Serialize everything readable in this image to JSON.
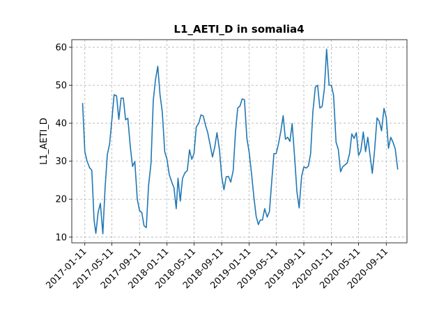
{
  "chart_data": {
    "type": "line",
    "title": "L1_AETI_D in somalia4",
    "xlabel": "",
    "ylabel": "L1_AETI_D",
    "grid": true,
    "ylim": [
      8.5,
      62
    ],
    "xlim": [
      "2016-11-14",
      "2020-12-12"
    ],
    "yticks": [
      10,
      20,
      30,
      40,
      50,
      60
    ],
    "xticks": [
      "2017-01-11",
      "2017-05-11",
      "2017-09-11",
      "2018-01-11",
      "2018-05-11",
      "2018-09-11",
      "2019-01-11",
      "2019-05-11",
      "2019-09-11",
      "2020-01-11",
      "2020-05-11",
      "2020-09-11"
    ],
    "series": [
      {
        "color": "#1f77b4",
        "x": [
          "2017-01-01",
          "2017-01-11",
          "2017-01-21",
          "2017-02-01",
          "2017-02-11",
          "2017-02-21",
          "2017-03-01",
          "2017-03-11",
          "2017-03-21",
          "2017-04-01",
          "2017-04-11",
          "2017-04-21",
          "2017-05-01",
          "2017-05-11",
          "2017-05-21",
          "2017-06-01",
          "2017-06-11",
          "2017-06-21",
          "2017-07-01",
          "2017-07-11",
          "2017-07-21",
          "2017-08-01",
          "2017-08-11",
          "2017-08-21",
          "2017-09-01",
          "2017-09-11",
          "2017-09-21",
          "2017-10-01",
          "2017-10-11",
          "2017-10-21",
          "2017-11-01",
          "2017-11-11",
          "2017-11-21",
          "2017-12-01",
          "2017-12-11",
          "2017-12-21",
          "2018-01-01",
          "2018-01-11",
          "2018-01-21",
          "2018-02-01",
          "2018-02-11",
          "2018-02-21",
          "2018-03-01",
          "2018-03-11",
          "2018-03-21",
          "2018-04-01",
          "2018-04-11",
          "2018-04-21",
          "2018-05-01",
          "2018-05-11",
          "2018-05-21",
          "2018-06-01",
          "2018-06-11",
          "2018-06-21",
          "2018-07-01",
          "2018-07-11",
          "2018-07-21",
          "2018-08-01",
          "2018-08-11",
          "2018-08-21",
          "2018-09-01",
          "2018-09-11",
          "2018-09-21",
          "2018-10-01",
          "2018-10-11",
          "2018-10-21",
          "2018-11-01",
          "2018-11-11",
          "2018-11-21",
          "2018-12-01",
          "2018-12-11",
          "2018-12-21",
          "2019-01-01",
          "2019-01-11",
          "2019-01-21",
          "2019-02-01",
          "2019-02-11",
          "2019-02-21",
          "2019-03-01",
          "2019-03-11",
          "2019-03-21",
          "2019-04-01",
          "2019-04-11",
          "2019-04-21",
          "2019-05-01",
          "2019-05-11",
          "2019-05-21",
          "2019-06-01",
          "2019-06-11",
          "2019-06-21",
          "2019-07-01",
          "2019-07-11",
          "2019-07-21",
          "2019-08-01",
          "2019-08-11",
          "2019-08-21",
          "2019-09-01",
          "2019-09-11",
          "2019-09-21",
          "2019-10-01",
          "2019-10-11",
          "2019-10-21",
          "2019-11-01",
          "2019-11-11",
          "2019-11-21",
          "2019-12-01",
          "2019-12-11",
          "2019-12-21",
          "2020-01-01",
          "2020-01-11",
          "2020-01-21",
          "2020-02-01",
          "2020-02-11",
          "2020-02-21",
          "2020-03-01",
          "2020-03-11",
          "2020-03-21",
          "2020-04-01",
          "2020-04-11",
          "2020-04-21",
          "2020-05-01",
          "2020-05-11",
          "2020-05-21",
          "2020-06-01",
          "2020-06-11",
          "2020-06-21",
          "2020-07-01",
          "2020-07-11",
          "2020-07-21",
          "2020-08-01",
          "2020-08-11",
          "2020-08-21",
          "2020-09-01",
          "2020-09-11",
          "2020-09-21",
          "2020-10-01",
          "2020-10-11",
          "2020-10-21",
          "2020-11-01"
        ],
        "values": [
          45.3,
          32.5,
          30.0,
          28.3,
          27.6,
          14.5,
          11.0,
          16.5,
          18.9,
          10.9,
          23.0,
          31.8,
          34.5,
          40.8,
          47.5,
          47.2,
          41.0,
          46.6,
          46.6,
          40.9,
          41.3,
          33.8,
          28.6,
          29.9,
          20.0,
          17.0,
          16.5,
          13.0,
          12.5,
          23.5,
          29.5,
          46.0,
          51.5,
          55.0,
          47.5,
          43.0,
          32.5,
          30.5,
          26.5,
          24.5,
          23.0,
          17.5,
          25.5,
          19.5,
          25.5,
          27.0,
          27.5,
          33.0,
          30.5,
          32.0,
          39.0,
          40.0,
          42.2,
          41.9,
          39.5,
          37.5,
          34.5,
          31.1,
          33.7,
          37.5,
          33.0,
          26.0,
          22.5,
          25.9,
          26.0,
          24.5,
          27.5,
          37.5,
          44.0,
          44.5,
          46.4,
          46.2,
          36.0,
          32.3,
          27.0,
          20.5,
          15.5,
          13.3,
          14.5,
          14.5,
          17.5,
          15.3,
          16.7,
          24.5,
          32.0,
          32.0,
          34.5,
          38.0,
          42.0,
          35.8,
          36.3,
          35.2,
          39.9,
          31.0,
          22.0,
          17.7,
          26.0,
          28.5,
          28.2,
          28.7,
          32.0,
          43.0,
          49.5,
          50.0,
          44.0,
          44.4,
          49.0,
          59.5,
          50.0,
          50.0,
          47.3,
          35.0,
          33.1,
          27.2,
          28.5,
          29.0,
          29.5,
          32.0,
          37.2,
          36.0,
          37.5,
          31.5,
          32.8,
          37.7,
          32.5,
          36.3,
          31.5,
          26.8,
          32.8,
          41.4,
          40.5,
          38.0,
          43.9,
          41.5,
          33.4,
          36.3,
          35.0,
          33.2,
          27.8
        ]
      }
    ]
  }
}
